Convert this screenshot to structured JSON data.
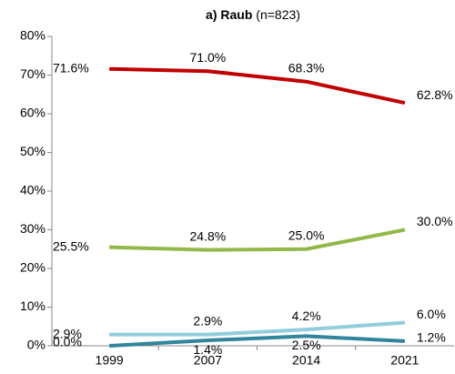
{
  "chart_data": {
    "type": "line",
    "title": "a) Raub",
    "title_note": "(n=823)",
    "categories": [
      "1999",
      "2007",
      "2014",
      "2021"
    ],
    "series": [
      {
        "color": "#c00000",
        "values": [
          71.6,
          71.0,
          68.3,
          62.8
        ],
        "value_labels": [
          "71.6%",
          "71.0%",
          "68.3%",
          "62.8%"
        ]
      },
      {
        "color": "#92b84a",
        "values": [
          25.5,
          24.8,
          25.0,
          30.0
        ],
        "value_labels": [
          "25.5%",
          "24.8%",
          "25.0%",
          "30.0%"
        ]
      },
      {
        "color": "#92cddd",
        "values": [
          2.9,
          2.9,
          4.2,
          6.0
        ],
        "value_labels": [
          "2.9%",
          "2.9%",
          "4.2%",
          "6.0%"
        ]
      },
      {
        "color": "#31859c",
        "values": [
          0.0,
          1.4,
          2.5,
          1.2
        ],
        "value_labels": [
          "0.0%",
          "1.4%",
          "2.5%",
          "1.2%"
        ]
      }
    ],
    "ylim": [
      0,
      80
    ],
    "yticks": [
      {
        "value": 0,
        "label": "0%"
      },
      {
        "value": 10,
        "label": "10%"
      },
      {
        "value": 20,
        "label": "20%"
      },
      {
        "value": 30,
        "label": "30%"
      },
      {
        "value": 40,
        "label": "40%"
      },
      {
        "value": 50,
        "label": "50%"
      },
      {
        "value": 60,
        "label": "60%"
      },
      {
        "value": 70,
        "label": "70%"
      },
      {
        "value": 80,
        "label": "80%"
      }
    ],
    "grid": false
  }
}
